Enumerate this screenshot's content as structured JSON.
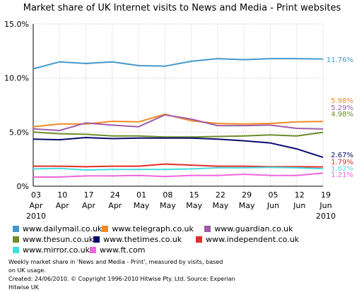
{
  "chart_data": {
    "type": "line",
    "title": "Market share of UK Internet visits to News and Media - Print websites",
    "categories": [
      [
        "03",
        "Apr",
        "2010"
      ],
      [
        "10",
        "Apr",
        ""
      ],
      [
        "17",
        "Apr",
        ""
      ],
      [
        "24",
        "Apr",
        ""
      ],
      [
        "01",
        "May",
        ""
      ],
      [
        "08",
        "May",
        ""
      ],
      [
        "15",
        "May",
        ""
      ],
      [
        "22",
        "May",
        ""
      ],
      [
        "29",
        "May",
        ""
      ],
      [
        "05",
        "Jun",
        ""
      ],
      [
        "12",
        "Jun",
        ""
      ],
      [
        "19",
        "Jun",
        "2010"
      ]
    ],
    "ylim": [
      0,
      15
    ],
    "yticks": [
      0,
      5,
      10,
      15
    ],
    "ytick_labels": [
      "0%",
      "5.0%",
      "10.0%",
      "15.0%"
    ],
    "grid": true,
    "legend_position": "bottom",
    "series": [
      {
        "name": "www.dailymail.co.uk",
        "color": "#4499cc",
        "end_label": "11.76%",
        "values": [
          10.85,
          11.5,
          11.35,
          11.5,
          11.15,
          11.1,
          11.55,
          11.8,
          11.7,
          11.8,
          11.8,
          11.76
        ]
      },
      {
        "name": "www.telegraph.co.uk",
        "color": "#f08a24",
        "end_label": "5.98%",
        "values": [
          5.5,
          5.75,
          5.75,
          6.0,
          5.95,
          6.65,
          6.05,
          5.8,
          5.75,
          5.8,
          5.95,
          5.98
        ]
      },
      {
        "name": "www.guardian.co.uk",
        "color": "#a05ea6",
        "end_label": "5.29%",
        "values": [
          5.3,
          5.15,
          5.85,
          5.65,
          5.5,
          6.6,
          6.2,
          5.6,
          5.6,
          5.65,
          5.35,
          5.29
        ]
      },
      {
        "name": "www.thesun.co.uk",
        "color": "#6e8c2a",
        "end_label": "4.98%",
        "values": [
          5.0,
          4.85,
          4.8,
          4.65,
          4.65,
          4.55,
          4.55,
          4.6,
          4.65,
          4.75,
          4.65,
          4.98
        ]
      },
      {
        "name": "www.thetimes.co.uk",
        "color": "#0a0a6e",
        "end_label": "2.67%",
        "values": [
          4.35,
          4.3,
          4.5,
          4.4,
          4.45,
          4.45,
          4.45,
          4.35,
          4.2,
          4.0,
          3.45,
          2.67
        ]
      },
      {
        "name": "www.independent.co.uk",
        "color": "#e52b2b",
        "end_label": "1.79%",
        "values": [
          1.85,
          1.85,
          1.8,
          1.85,
          1.85,
          2.05,
          1.95,
          1.85,
          1.85,
          1.8,
          1.8,
          1.79
        ]
      },
      {
        "name": "www.mirror.co.uk",
        "color": "#44dddd",
        "end_label": "1.62%",
        "values": [
          1.6,
          1.65,
          1.5,
          1.55,
          1.55,
          1.55,
          1.6,
          1.7,
          1.7,
          1.75,
          1.7,
          1.62
        ]
      },
      {
        "name": "www.ft.com",
        "color": "#ee66dd",
        "end_label": "1.21%",
        "values": [
          0.85,
          0.85,
          0.95,
          0.95,
          1.0,
          0.9,
          1.0,
          1.0,
          1.1,
          1.0,
          1.0,
          1.21
        ]
      }
    ]
  },
  "footnote": {
    "line1": "Weekly market share in 'News and Media - Print', measured by visits, based",
    "line2": "on UK usage.",
    "line3": "Created: 24/06/2010. © Copyright 1996-2010 Hitwise Pty. Ltd.    Source: Experian Hitwise UK"
  }
}
